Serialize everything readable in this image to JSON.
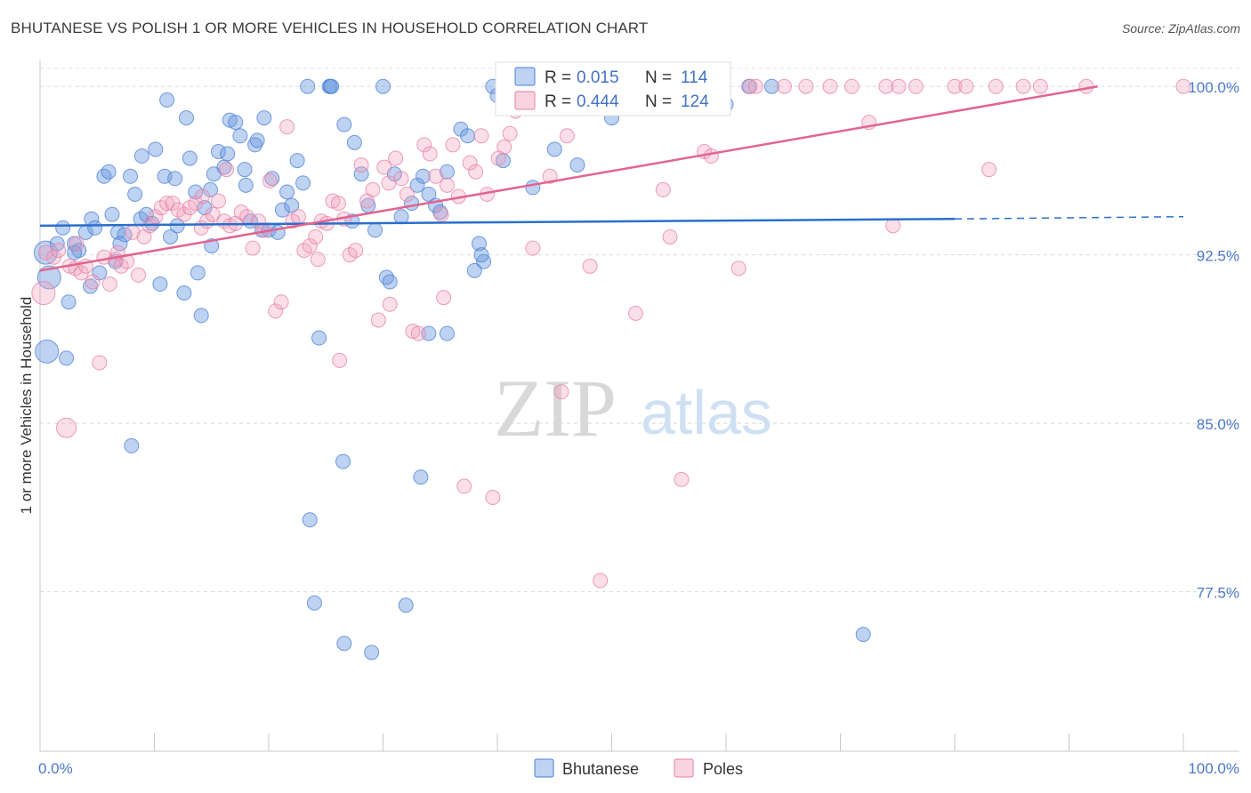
{
  "header": {
    "title": "BHUTANESE VS POLISH 1 OR MORE VEHICLES IN HOUSEHOLD CORRELATION CHART",
    "source": "Source: ZipAtlas.com"
  },
  "watermark": {
    "zip": "ZIP",
    "atlas": "atlas"
  },
  "colors": {
    "bhutanese": "#6f9be0",
    "bhutanese_line": "#2a6fcc",
    "poles": "#f0a0bc",
    "poles_line": "#e2648f",
    "tick_label": "#4a78c8"
  },
  "chart_data": {
    "type": "scatter",
    "title": "BHUTANESE VS POLISH 1 OR MORE VEHICLES IN HOUSEHOLD CORRELATION CHART",
    "ylabel": "1 or more Vehicles in Household",
    "xlabel": "",
    "xlim": [
      0,
      100
    ],
    "ylim": [
      70.4,
      100.8
    ],
    "x_ticks": [
      "0.0%",
      "100.0%"
    ],
    "y_ticks": [
      {
        "value": 100.0,
        "label": "100.0%"
      },
      {
        "value": 92.5,
        "label": "92.5%"
      },
      {
        "value": 85.0,
        "label": "85.0%"
      },
      {
        "value": 77.5,
        "label": "77.5%"
      }
    ],
    "grid": true,
    "legend_position": "bottom-center",
    "stats": [
      {
        "r_label": "R =",
        "r": "0.015",
        "n_label": "N =",
        "n": "114"
      },
      {
        "r_label": "R =",
        "r": "0.444",
        "n_label": "N =",
        "n": "124"
      }
    ],
    "series": [
      {
        "name": "Bhutanese",
        "trend": {
          "x": [
            0,
            80,
            100
          ],
          "y": [
            93.8,
            94.1,
            94.2
          ],
          "solid_until": 80
        },
        "points": [
          [
            0.5,
            92.6
          ],
          [
            0.8,
            91.5
          ],
          [
            0.6,
            88.2
          ],
          [
            2,
            93.7
          ],
          [
            2.3,
            87.9
          ],
          [
            2.5,
            90.4
          ],
          [
            3,
            93.0
          ],
          [
            3.4,
            92.7
          ],
          [
            4,
            93.5
          ],
          [
            4.4,
            91.1
          ],
          [
            4.5,
            94.1
          ],
          [
            4.8,
            93.7
          ],
          [
            5.2,
            91.7
          ],
          [
            5.6,
            96.0
          ],
          [
            6,
            96.2
          ],
          [
            6.3,
            94.3
          ],
          [
            6.6,
            92.2
          ],
          [
            6.8,
            93.5
          ],
          [
            7.4,
            93.4
          ],
          [
            7.9,
            96.0
          ],
          [
            8.3,
            95.2
          ],
          [
            8.8,
            94.1
          ],
          [
            8.9,
            96.9
          ],
          [
            9.3,
            94.3
          ],
          [
            9.8,
            93.9
          ],
          [
            10.1,
            97.2
          ],
          [
            10.5,
            91.2
          ],
          [
            10.9,
            96.0
          ],
          [
            11.1,
            99.4
          ],
          [
            11.4,
            93.3
          ],
          [
            11.8,
            95.9
          ],
          [
            12.6,
            90.8
          ],
          [
            12.8,
            98.6
          ],
          [
            13.1,
            96.8
          ],
          [
            13.6,
            95.3
          ],
          [
            13.8,
            91.7
          ],
          [
            14.1,
            89.8
          ],
          [
            14.4,
            94.6
          ],
          [
            14.9,
            95.4
          ],
          [
            15.2,
            96.1
          ],
          [
            15.6,
            97.1
          ],
          [
            16.1,
            96.4
          ],
          [
            16.4,
            97.0
          ],
          [
            16.6,
            98.5
          ],
          [
            17.1,
            98.4
          ],
          [
            17.5,
            97.8
          ],
          [
            17.9,
            96.3
          ],
          [
            18,
            95.6
          ],
          [
            18.8,
            97.4
          ],
          [
            19,
            97.6
          ],
          [
            19.4,
            93.6
          ],
          [
            19.6,
            98.6
          ],
          [
            20,
            93.6
          ],
          [
            20.3,
            95.9
          ],
          [
            20.8,
            93.5
          ],
          [
            21.2,
            94.5
          ],
          [
            21.6,
            95.3
          ],
          [
            22,
            94.7
          ],
          [
            22.5,
            96.7
          ],
          [
            23,
            95.7
          ],
          [
            23.4,
            100.0
          ],
          [
            25.3,
            100.0
          ],
          [
            25.4,
            100.0
          ],
          [
            25.5,
            100.0
          ],
          [
            30,
            100.0
          ],
          [
            23.6,
            80.7
          ],
          [
            24,
            77.0
          ],
          [
            24.4,
            88.8
          ],
          [
            26.6,
            98.3
          ],
          [
            27.3,
            94.0
          ],
          [
            27.5,
            97.5
          ],
          [
            28.1,
            96.1
          ],
          [
            28.7,
            94.7
          ],
          [
            29.3,
            93.6
          ],
          [
            30.3,
            91.5
          ],
          [
            30.6,
            91.3
          ],
          [
            31,
            96.1
          ],
          [
            31.6,
            94.2
          ],
          [
            32.5,
            94.8
          ],
          [
            33,
            95.6
          ],
          [
            33.5,
            96.0
          ],
          [
            34,
            95.2
          ],
          [
            34.6,
            94.7
          ],
          [
            35,
            94.4
          ],
          [
            35.6,
            96.2
          ],
          [
            36.8,
            98.1
          ],
          [
            37.4,
            97.8
          ],
          [
            38.4,
            93.0
          ],
          [
            38.8,
            92.2
          ],
          [
            38,
            91.8
          ],
          [
            26.5,
            83.3
          ],
          [
            33.3,
            82.6
          ],
          [
            26.6,
            75.2
          ],
          [
            29,
            74.8
          ],
          [
            32,
            76.9
          ],
          [
            34,
            89.0
          ],
          [
            35.6,
            89.0
          ],
          [
            38.6,
            92.5
          ],
          [
            39.6,
            100.0
          ],
          [
            40,
            99.6
          ],
          [
            40.5,
            96.7
          ],
          [
            43.1,
            95.5
          ],
          [
            45,
            97.2
          ],
          [
            47,
            96.5
          ],
          [
            50,
            98.6
          ],
          [
            54,
            100.0
          ],
          [
            57,
            100.0
          ],
          [
            60,
            99.2
          ],
          [
            62,
            100.0
          ],
          [
            64,
            100.0
          ],
          [
            72,
            75.6
          ],
          [
            8,
            84.0
          ],
          [
            3,
            92.6
          ],
          [
            1.5,
            93.0
          ],
          [
            7,
            93.0
          ],
          [
            12,
            93.8
          ],
          [
            15,
            92.9
          ],
          [
            18.4,
            94.0
          ]
        ]
      },
      {
        "name": "Poles",
        "trend": {
          "x": [
            0,
            92.5
          ],
          "y": [
            91.8,
            100.0
          ],
          "solid_until": 92.5
        },
        "points": [
          [
            0.3,
            90.8
          ],
          [
            0.5,
            92.6
          ],
          [
            1.2,
            92.4
          ],
          [
            1.6,
            92.7
          ],
          [
            2.3,
            84.8
          ],
          [
            2.6,
            92.0
          ],
          [
            3.1,
            91.9
          ],
          [
            3.6,
            91.7
          ],
          [
            4,
            92.0
          ],
          [
            4.6,
            91.3
          ],
          [
            5.2,
            87.7
          ],
          [
            5.6,
            92.4
          ],
          [
            6.1,
            91.2
          ],
          [
            6.6,
            92.3
          ],
          [
            7.1,
            92.0
          ],
          [
            7.6,
            92.2
          ],
          [
            8.1,
            93.5
          ],
          [
            8.6,
            91.6
          ],
          [
            9.1,
            93.3
          ],
          [
            9.6,
            93.8
          ],
          [
            10.1,
            94.2
          ],
          [
            10.6,
            94.6
          ],
          [
            11.1,
            94.8
          ],
          [
            11.6,
            94.8
          ],
          [
            12.1,
            94.5
          ],
          [
            12.6,
            94.3
          ],
          [
            13.1,
            94.6
          ],
          [
            13.6,
            94.8
          ],
          [
            14.1,
            93.7
          ],
          [
            14.6,
            94.0
          ],
          [
            15.1,
            94.3
          ],
          [
            15.6,
            94.9
          ],
          [
            16.1,
            94.0
          ],
          [
            16.6,
            93.8
          ],
          [
            17.1,
            93.9
          ],
          [
            17.6,
            94.4
          ],
          [
            18.1,
            94.2
          ],
          [
            18.6,
            92.8
          ],
          [
            19.1,
            94.0
          ],
          [
            19.6,
            93.6
          ],
          [
            20.1,
            95.8
          ],
          [
            20.6,
            90.0
          ],
          [
            21.1,
            90.4
          ],
          [
            21.6,
            98.2
          ],
          [
            22.1,
            94.0
          ],
          [
            22.6,
            94.2
          ],
          [
            23.1,
            92.7
          ],
          [
            23.6,
            92.9
          ],
          [
            24.1,
            93.3
          ],
          [
            24.6,
            94.0
          ],
          [
            25.1,
            93.9
          ],
          [
            25.6,
            94.9
          ],
          [
            26.1,
            94.8
          ],
          [
            26.6,
            94.1
          ],
          [
            27.1,
            92.5
          ],
          [
            27.6,
            92.7
          ],
          [
            28.1,
            96.5
          ],
          [
            28.6,
            94.9
          ],
          [
            29.1,
            95.4
          ],
          [
            29.6,
            89.6
          ],
          [
            30.1,
            96.4
          ],
          [
            30.6,
            90.3
          ],
          [
            31.1,
            96.8
          ],
          [
            31.6,
            95.9
          ],
          [
            32.1,
            95.2
          ],
          [
            32.6,
            89.1
          ],
          [
            33.1,
            89.0
          ],
          [
            33.6,
            97.4
          ],
          [
            34.1,
            97.0
          ],
          [
            34.6,
            96.0
          ],
          [
            35.1,
            94.3
          ],
          [
            35.6,
            95.6
          ],
          [
            36.1,
            97.4
          ],
          [
            36.6,
            95.1
          ],
          [
            37.1,
            82.2
          ],
          [
            37.6,
            96.6
          ],
          [
            38.1,
            96.2
          ],
          [
            38.6,
            97.8
          ],
          [
            39.1,
            95.2
          ],
          [
            39.6,
            81.7
          ],
          [
            40.1,
            96.8
          ],
          [
            40.6,
            97.3
          ],
          [
            41.1,
            97.9
          ],
          [
            41.6,
            98.9
          ],
          [
            42.1,
            100.0
          ],
          [
            42.6,
            99.3
          ],
          [
            43.1,
            92.8
          ],
          [
            44.6,
            96.0
          ],
          [
            45.6,
            86.4
          ],
          [
            46.1,
            97.8
          ],
          [
            48.1,
            92.0
          ],
          [
            49,
            78.0
          ],
          [
            52.1,
            89.9
          ],
          [
            55.1,
            93.3
          ],
          [
            56.1,
            82.5
          ],
          [
            58.1,
            97.1
          ],
          [
            58.7,
            96.9
          ],
          [
            61.1,
            91.9
          ],
          [
            62.1,
            100.0
          ],
          [
            67,
            100.0
          ],
          [
            71,
            100.0
          ],
          [
            74,
            100.0
          ],
          [
            80,
            100.0
          ],
          [
            81,
            100.0
          ],
          [
            83,
            96.3
          ],
          [
            86,
            100.0
          ],
          [
            91.5,
            100.0
          ],
          [
            100,
            100.0
          ],
          [
            74.6,
            93.8
          ],
          [
            72.5,
            98.4
          ],
          [
            54.5,
            95.4
          ],
          [
            43.6,
            99.8
          ],
          [
            44.1,
            100.0
          ],
          [
            45.1,
            100.0
          ],
          [
            47.1,
            100.0
          ],
          [
            49.6,
            100.0
          ],
          [
            51,
            100.0
          ],
          [
            53,
            100.0
          ],
          [
            53.5,
            100.0
          ],
          [
            57,
            100.0
          ],
          [
            62.6,
            100.0
          ],
          [
            65.1,
            100.0
          ],
          [
            69.1,
            100.0
          ],
          [
            75.1,
            100.0
          ],
          [
            76.6,
            100.0
          ],
          [
            83.6,
            100.0
          ],
          [
            87.5,
            100.0
          ],
          [
            3.2,
            93.0
          ],
          [
            6.8,
            92.6
          ],
          [
            16.3,
            96.3
          ],
          [
            26.2,
            87.8
          ],
          [
            30.5,
            95.7
          ],
          [
            35.3,
            90.6
          ],
          [
            24.3,
            92.3
          ],
          [
            14.2,
            95.1
          ]
        ]
      }
    ]
  }
}
